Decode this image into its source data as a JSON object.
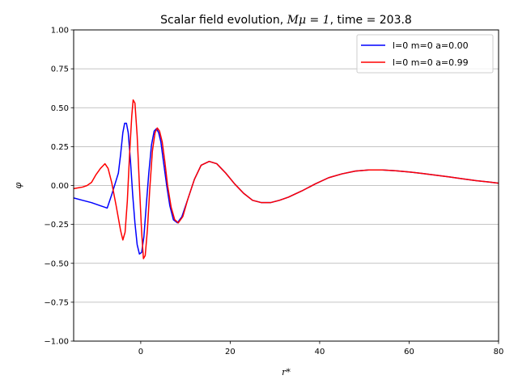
{
  "chart_data": {
    "type": "line",
    "title_main": "Scalar field evolution, ",
    "title_math": "Mμ = 1",
    "title_time": ", time = 203.8",
    "xlabel": "r*",
    "ylabel": "φ",
    "xlim": [
      -15,
      80
    ],
    "ylim": [
      -1.0,
      1.0
    ],
    "xticks": [
      0,
      20,
      40,
      60,
      80
    ],
    "xtick_labels": [
      "0",
      "20",
      "40",
      "60",
      "80"
    ],
    "yticks": [
      -1.0,
      -0.75,
      -0.5,
      -0.25,
      0.0,
      0.25,
      0.5,
      0.75,
      1.0
    ],
    "ytick_labels": [
      "−1.00",
      "−0.75",
      "−0.50",
      "−0.25",
      "0.00",
      "0.25",
      "0.50",
      "0.75",
      "1.00"
    ],
    "grid": "horizontal",
    "legend_position": "top-right",
    "series": [
      {
        "name": "l=0 m=0 a=0.00",
        "color": "#0000ff",
        "points": [
          [
            -15,
            -0.08
          ],
          [
            -13,
            -0.095
          ],
          [
            -11,
            -0.11
          ],
          [
            -9,
            -0.13
          ],
          [
            -7.5,
            -0.145
          ],
          [
            -6.5,
            -0.06
          ],
          [
            -5,
            0.08
          ],
          [
            -4.5,
            0.2
          ],
          [
            -4,
            0.34
          ],
          [
            -3.6,
            0.4
          ],
          [
            -3.2,
            0.4
          ],
          [
            -2.8,
            0.34
          ],
          [
            -2.3,
            0.16
          ],
          [
            -1.8,
            -0.06
          ],
          [
            -1.3,
            -0.24
          ],
          [
            -0.8,
            -0.38
          ],
          [
            -0.3,
            -0.44
          ],
          [
            0.2,
            -0.43
          ],
          [
            0.7,
            -0.33
          ],
          [
            1.2,
            -0.14
          ],
          [
            1.8,
            0.08
          ],
          [
            2.4,
            0.26
          ],
          [
            3.0,
            0.35
          ],
          [
            3.5,
            0.365
          ],
          [
            4.0,
            0.34
          ],
          [
            4.5,
            0.28
          ],
          [
            5.0,
            0.17
          ],
          [
            5.8,
            0.0
          ],
          [
            6.5,
            -0.13
          ],
          [
            7.3,
            -0.22
          ],
          [
            8.2,
            -0.24
          ],
          [
            9.2,
            -0.2
          ],
          [
            10.5,
            -0.09
          ],
          [
            12,
            0.04
          ],
          [
            13.5,
            0.13
          ],
          [
            15.3,
            0.155
          ],
          [
            17,
            0.14
          ],
          [
            19,
            0.08
          ],
          [
            21,
            0.01
          ],
          [
            23,
            -0.05
          ],
          [
            25,
            -0.095
          ],
          [
            27,
            -0.11
          ],
          [
            29,
            -0.11
          ],
          [
            31,
            -0.095
          ],
          [
            33,
            -0.075
          ],
          [
            36,
            -0.035
          ],
          [
            39,
            0.01
          ],
          [
            42,
            0.05
          ],
          [
            45,
            0.075
          ],
          [
            48,
            0.093
          ],
          [
            51,
            0.1
          ],
          [
            54,
            0.1
          ],
          [
            57,
            0.095
          ],
          [
            60,
            0.087
          ],
          [
            63,
            0.077
          ],
          [
            66,
            0.066
          ],
          [
            69,
            0.055
          ],
          [
            72,
            0.043
          ],
          [
            75,
            0.031
          ],
          [
            78,
            0.022
          ],
          [
            80,
            0.015
          ]
        ]
      },
      {
        "name": "l=0 m=0 a=0.99",
        "color": "#ff0000",
        "points": [
          [
            -15,
            -0.02
          ],
          [
            -14,
            -0.015
          ],
          [
            -13,
            -0.01
          ],
          [
            -12,
            0.0
          ],
          [
            -11,
            0.02
          ],
          [
            -10,
            0.07
          ],
          [
            -9,
            0.11
          ],
          [
            -8,
            0.14
          ],
          [
            -7.3,
            0.11
          ],
          [
            -6.5,
            0.02
          ],
          [
            -5.5,
            -0.13
          ],
          [
            -4.5,
            -0.29
          ],
          [
            -4.0,
            -0.35
          ],
          [
            -3.5,
            -0.3
          ],
          [
            -3.0,
            -0.1
          ],
          [
            -2.5,
            0.2
          ],
          [
            -2.0,
            0.45
          ],
          [
            -1.7,
            0.55
          ],
          [
            -1.3,
            0.53
          ],
          [
            -0.8,
            0.32
          ],
          [
            -0.3,
            0.0
          ],
          [
            0.2,
            -0.3
          ],
          [
            0.6,
            -0.47
          ],
          [
            1.0,
            -0.45
          ],
          [
            1.5,
            -0.28
          ],
          [
            2.0,
            -0.03
          ],
          [
            2.6,
            0.22
          ],
          [
            3.2,
            0.34
          ],
          [
            3.7,
            0.37
          ],
          [
            4.2,
            0.35
          ],
          [
            4.8,
            0.28
          ],
          [
            5.4,
            0.15
          ],
          [
            6.0,
            -0.0
          ],
          [
            6.8,
            -0.14
          ],
          [
            7.6,
            -0.22
          ],
          [
            8.4,
            -0.24
          ],
          [
            9.4,
            -0.2
          ],
          [
            10.5,
            -0.09
          ],
          [
            12,
            0.04
          ],
          [
            13.5,
            0.13
          ],
          [
            15.3,
            0.155
          ],
          [
            17,
            0.14
          ],
          [
            19,
            0.08
          ],
          [
            21,
            0.01
          ],
          [
            23,
            -0.05
          ],
          [
            25,
            -0.095
          ],
          [
            27,
            -0.11
          ],
          [
            29,
            -0.11
          ],
          [
            31,
            -0.095
          ],
          [
            33,
            -0.075
          ],
          [
            36,
            -0.035
          ],
          [
            39,
            0.01
          ],
          [
            42,
            0.05
          ],
          [
            45,
            0.075
          ],
          [
            48,
            0.093
          ],
          [
            51,
            0.1
          ],
          [
            54,
            0.1
          ],
          [
            57,
            0.095
          ],
          [
            60,
            0.087
          ],
          [
            63,
            0.077
          ],
          [
            66,
            0.066
          ],
          [
            69,
            0.055
          ],
          [
            72,
            0.043
          ],
          [
            75,
            0.031
          ],
          [
            78,
            0.022
          ],
          [
            80,
            0.015
          ]
        ]
      }
    ]
  }
}
